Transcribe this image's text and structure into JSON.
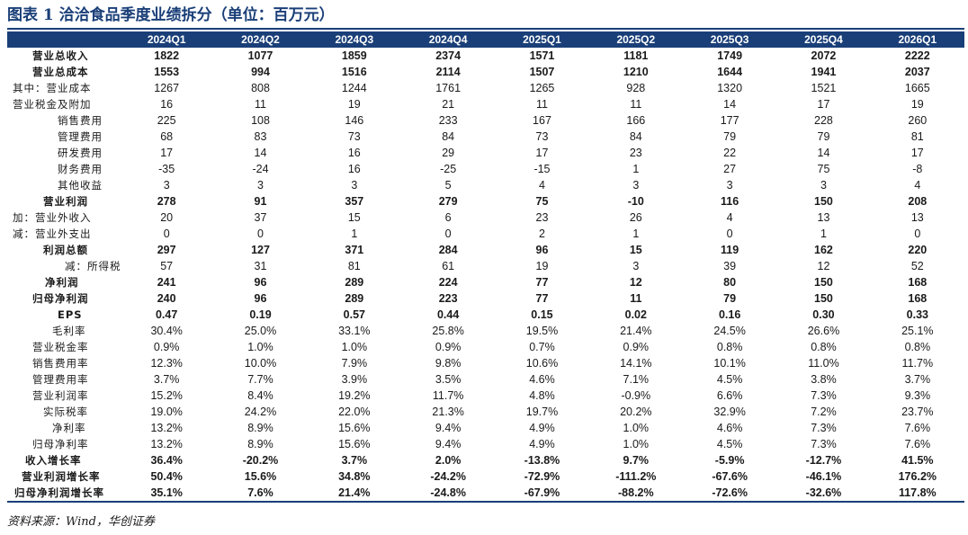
{
  "title": "图表 1  洽洽食品季度业绩拆分（单位：百万元）",
  "columns": [
    "",
    "2024Q1",
    "2024Q2",
    "2024Q3",
    "2024Q4",
    "2025Q1",
    "2025Q2",
    "2025Q3",
    "2025Q4",
    "2026Q1"
  ],
  "rows": [
    {
      "label": "营业总收入",
      "bold": true,
      "indent": 28,
      "values": [
        "1822",
        "1077",
        "1859",
        "2374",
        "1571",
        "1181",
        "1749",
        "2072",
        "2222"
      ]
    },
    {
      "label": "营业总成本",
      "bold": true,
      "indent": 28,
      "values": [
        "1553",
        "994",
        "1516",
        "2114",
        "1507",
        "1210",
        "1644",
        "1941",
        "2037"
      ]
    },
    {
      "label": "其中：营业成本",
      "bold": false,
      "indent": 6,
      "values": [
        "1267",
        "808",
        "1244",
        "1761",
        "1265",
        "928",
        "1320",
        "1521",
        "1665"
      ]
    },
    {
      "label": "营业税金及附加",
      "bold": false,
      "indent": 6,
      "values": [
        "16",
        "11",
        "19",
        "21",
        "11",
        "11",
        "14",
        "17",
        "19"
      ]
    },
    {
      "label": "销售费用",
      "bold": false,
      "indent": 56,
      "values": [
        "225",
        "108",
        "146",
        "233",
        "167",
        "166",
        "177",
        "228",
        "260"
      ]
    },
    {
      "label": "管理费用",
      "bold": false,
      "indent": 56,
      "values": [
        "68",
        "83",
        "73",
        "84",
        "73",
        "84",
        "79",
        "79",
        "81"
      ]
    },
    {
      "label": "研发费用",
      "bold": false,
      "indent": 56,
      "values": [
        "17",
        "14",
        "16",
        "29",
        "17",
        "23",
        "22",
        "14",
        "17"
      ]
    },
    {
      "label": "财务费用",
      "bold": false,
      "indent": 56,
      "values": [
        "-35",
        "-24",
        "16",
        "-25",
        "-15",
        "1",
        "27",
        "75",
        "-8"
      ]
    },
    {
      "label": "其他收益",
      "bold": false,
      "indent": 56,
      "values": [
        "3",
        "3",
        "3",
        "5",
        "4",
        "3",
        "3",
        "3",
        "4"
      ]
    },
    {
      "label": "营业利润",
      "bold": true,
      "indent": 40,
      "values": [
        "278",
        "91",
        "357",
        "279",
        "75",
        "-10",
        "116",
        "150",
        "208"
      ]
    },
    {
      "label": "加：营业外收入",
      "bold": false,
      "indent": 6,
      "values": [
        "20",
        "37",
        "15",
        "6",
        "23",
        "26",
        "4",
        "13",
        "13"
      ]
    },
    {
      "label": "减：营业外支出",
      "bold": false,
      "indent": 6,
      "values": [
        "0",
        "0",
        "1",
        "0",
        "2",
        "1",
        "0",
        "1",
        "0"
      ]
    },
    {
      "label": "利润总额",
      "bold": true,
      "indent": 40,
      "values": [
        "297",
        "127",
        "371",
        "284",
        "96",
        "15",
        "119",
        "162",
        "220"
      ]
    },
    {
      "label": "减：所得税",
      "bold": false,
      "indent": 64,
      "values": [
        "57",
        "31",
        "81",
        "61",
        "19",
        "3",
        "39",
        "12",
        "52"
      ]
    },
    {
      "label": "净利润",
      "bold": true,
      "indent": 42,
      "values": [
        "241",
        "96",
        "289",
        "224",
        "77",
        "12",
        "80",
        "150",
        "168"
      ]
    },
    {
      "label": "归母净利润",
      "bold": true,
      "indent": 28,
      "values": [
        "240",
        "96",
        "289",
        "223",
        "77",
        "11",
        "79",
        "150",
        "168"
      ]
    },
    {
      "label": "EPS",
      "bold": true,
      "indent": 56,
      "values": [
        "0.47",
        "0.19",
        "0.57",
        "0.44",
        "0.15",
        "0.02",
        "0.16",
        "0.30",
        "0.33"
      ]
    },
    {
      "label": "毛利率",
      "bold": false,
      "indent": 50,
      "values": [
        "30.4%",
        "25.0%",
        "33.1%",
        "25.8%",
        "19.5%",
        "21.4%",
        "24.5%",
        "26.6%",
        "25.1%"
      ]
    },
    {
      "label": "营业税金率",
      "bold": false,
      "indent": 28,
      "values": [
        "0.9%",
        "1.0%",
        "1.0%",
        "0.9%",
        "0.7%",
        "0.9%",
        "0.8%",
        "0.8%",
        "0.8%"
      ]
    },
    {
      "label": "销售费用率",
      "bold": false,
      "indent": 28,
      "values": [
        "12.3%",
        "10.0%",
        "7.9%",
        "9.8%",
        "10.6%",
        "14.1%",
        "10.1%",
        "11.0%",
        "11.7%"
      ]
    },
    {
      "label": "管理费用率",
      "bold": false,
      "indent": 28,
      "values": [
        "3.7%",
        "7.7%",
        "3.9%",
        "3.5%",
        "4.6%",
        "7.1%",
        "4.5%",
        "3.8%",
        "3.7%"
      ]
    },
    {
      "label": "营业利润率",
      "bold": false,
      "indent": 28,
      "values": [
        "15.2%",
        "8.4%",
        "19.2%",
        "11.7%",
        "4.8%",
        "-0.9%",
        "6.6%",
        "7.3%",
        "9.3%"
      ]
    },
    {
      "label": "实际税率",
      "bold": false,
      "indent": 40,
      "values": [
        "19.0%",
        "24.2%",
        "22.0%",
        "21.3%",
        "19.7%",
        "20.2%",
        "32.9%",
        "7.2%",
        "23.7%"
      ]
    },
    {
      "label": "净利率",
      "bold": false,
      "indent": 50,
      "values": [
        "13.2%",
        "8.9%",
        "15.6%",
        "9.4%",
        "4.9%",
        "1.0%",
        "4.6%",
        "7.3%",
        "7.6%"
      ]
    },
    {
      "label": "归母净利率",
      "bold": false,
      "indent": 28,
      "values": [
        "13.2%",
        "8.9%",
        "15.6%",
        "9.4%",
        "4.9%",
        "1.0%",
        "4.5%",
        "7.3%",
        "7.6%"
      ]
    },
    {
      "label": "收入增长率",
      "bold": true,
      "indent": 20,
      "values": [
        "36.4%",
        "-20.2%",
        "3.7%",
        "2.0%",
        "-13.8%",
        "9.7%",
        "-5.9%",
        "-12.7%",
        "41.5%"
      ]
    },
    {
      "label": "营业利润增长率",
      "bold": true,
      "indent": 16,
      "values": [
        "50.4%",
        "15.6%",
        "34.8%",
        "-24.2%",
        "-72.9%",
        "-111.2%",
        "-67.6%",
        "-46.1%",
        "176.2%"
      ]
    },
    {
      "label": "归母净利润增长率",
      "bold": true,
      "indent": 8,
      "values": [
        "35.1%",
        "7.6%",
        "21.4%",
        "-24.8%",
        "-67.9%",
        "-88.2%",
        "-72.6%",
        "-32.6%",
        "117.8%"
      ]
    }
  ],
  "source": "资料来源：Wind，华创证券",
  "colors": {
    "brand": "#1a3f78",
    "header_text": "#ffffff"
  }
}
